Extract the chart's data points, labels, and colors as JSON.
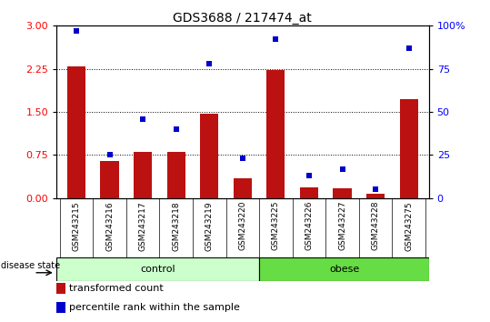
{
  "title": "GDS3688 / 217474_at",
  "samples": [
    "GSM243215",
    "GSM243216",
    "GSM243217",
    "GSM243218",
    "GSM243219",
    "GSM243220",
    "GSM243225",
    "GSM243226",
    "GSM243227",
    "GSM243228",
    "GSM243275"
  ],
  "transformed_count": [
    2.3,
    0.65,
    0.8,
    0.8,
    1.47,
    0.35,
    2.23,
    0.18,
    0.17,
    0.07,
    1.72
  ],
  "percentile_rank": [
    97,
    25,
    46,
    40,
    78,
    23,
    92,
    13,
    17,
    5,
    87
  ],
  "groups": [
    {
      "label": "control",
      "indices": [
        0,
        1,
        2,
        3,
        4,
        5
      ],
      "color": "#ccffcc",
      "edge_color": "#33aa33"
    },
    {
      "label": "obese",
      "indices": [
        6,
        7,
        8,
        9,
        10
      ],
      "color": "#66dd44",
      "edge_color": "#33aa33"
    }
  ],
  "ylim_left": [
    0,
    3
  ],
  "ylim_right": [
    0,
    100
  ],
  "yticks_left": [
    0,
    0.75,
    1.5,
    2.25,
    3
  ],
  "yticks_right": [
    0,
    25,
    50,
    75,
    100
  ],
  "bar_color": "#bb1111",
  "dot_color": "#0000cc",
  "plot_bg": "#ffffff",
  "xtick_bg": "#cccccc",
  "label_transformed": "transformed count",
  "label_percentile": "percentile rank within the sample",
  "disease_state_label": "disease state"
}
